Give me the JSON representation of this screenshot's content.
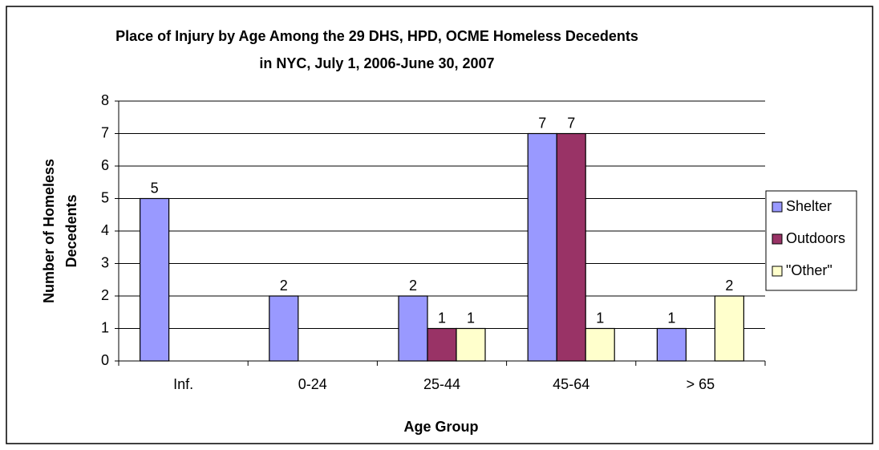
{
  "chart_data": {
    "type": "bar",
    "title": [
      "Place of Injury by Age Among the 29 DHS, HPD, OCME Homeless Decedents",
      "in NYC, July 1, 2006-June 30, 2007"
    ],
    "x_label": "Age Group",
    "y_label": [
      "Number of Homeless",
      "Decedents"
    ],
    "categories": [
      "Inf.",
      "0-24",
      "25-44",
      "45-64",
      "> 65"
    ],
    "series": [
      {
        "name": "Shelter",
        "color": "#9999ff",
        "values": [
          5,
          2,
          2,
          7,
          1
        ]
      },
      {
        "name": "Outdoors",
        "color": "#993366",
        "values": [
          null,
          null,
          1,
          7,
          null
        ]
      },
      {
        "name": "\"Other\"",
        "color": "#ffffcc",
        "values": [
          null,
          null,
          1,
          1,
          2
        ]
      }
    ],
    "ylim": [
      0,
      8
    ],
    "yticks": [
      0,
      1,
      2,
      3,
      4,
      5,
      6,
      7,
      8
    ],
    "grid": true,
    "legend": "right"
  }
}
